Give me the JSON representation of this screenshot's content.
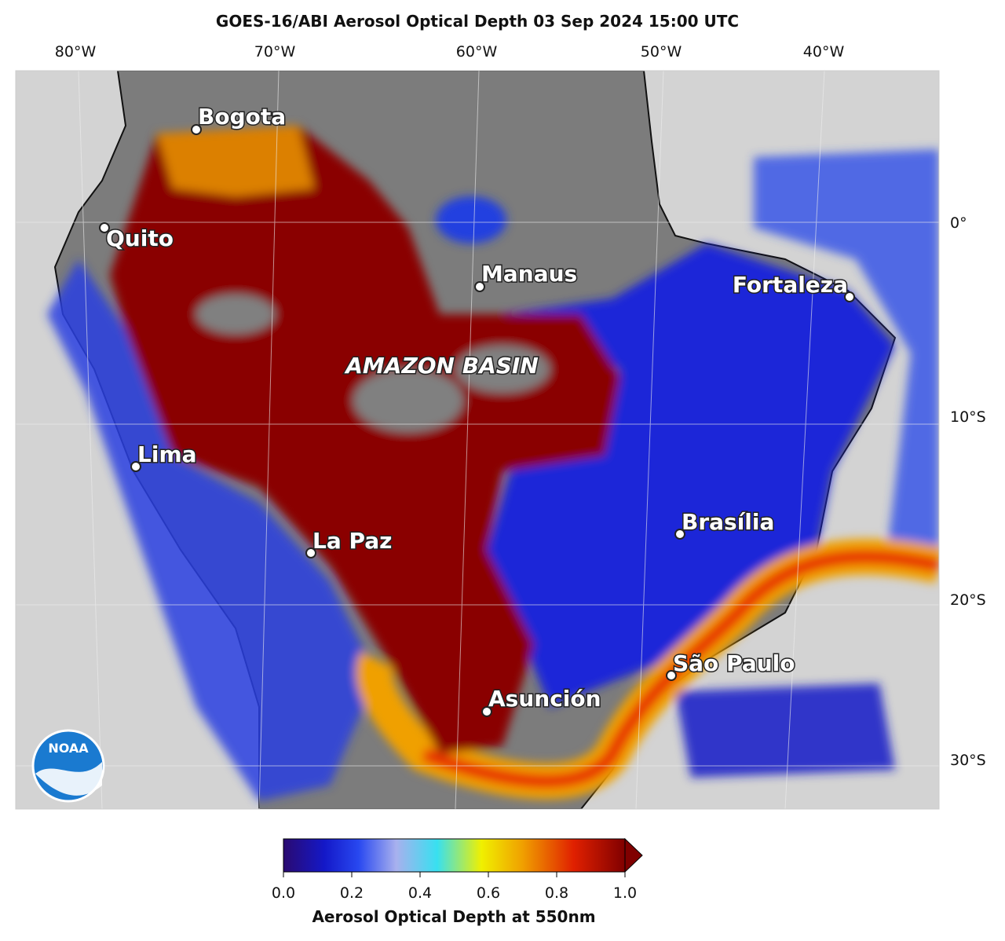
{
  "header": {
    "title": "GOES-16/ABI Aerosol Optical Depth  03 Sep 2024 15:00 UTC"
  },
  "longitude_labels": [
    "80°W",
    "70°W",
    "60°W",
    "50°W",
    "40°W"
  ],
  "latitude_labels": [
    "0°",
    "10°S",
    "20°S",
    "30°S"
  ],
  "region_label": "AMAZON BASIN",
  "cities": [
    {
      "name": "Bogota"
    },
    {
      "name": "Quito"
    },
    {
      "name": "Manaus"
    },
    {
      "name": "Fortaleza"
    },
    {
      "name": "Lima"
    },
    {
      "name": "La Paz"
    },
    {
      "name": "Brasília"
    },
    {
      "name": "São Paulo"
    },
    {
      "name": "Asunción"
    }
  ],
  "logo": "NOAA",
  "colorbar": {
    "range": [
      0,
      1
    ],
    "ticks": [
      {
        "value": 0,
        "label": "0.0"
      },
      {
        "value": 0.2,
        "label": "0.2"
      },
      {
        "value": 0.4,
        "label": "0.4"
      },
      {
        "value": 0.6,
        "label": "0.6"
      },
      {
        "value": 0.8,
        "label": "0.8"
      },
      {
        "value": 1,
        "label": "1.0"
      }
    ],
    "label": "Aerosol Optical Depth at 550nm"
  }
}
